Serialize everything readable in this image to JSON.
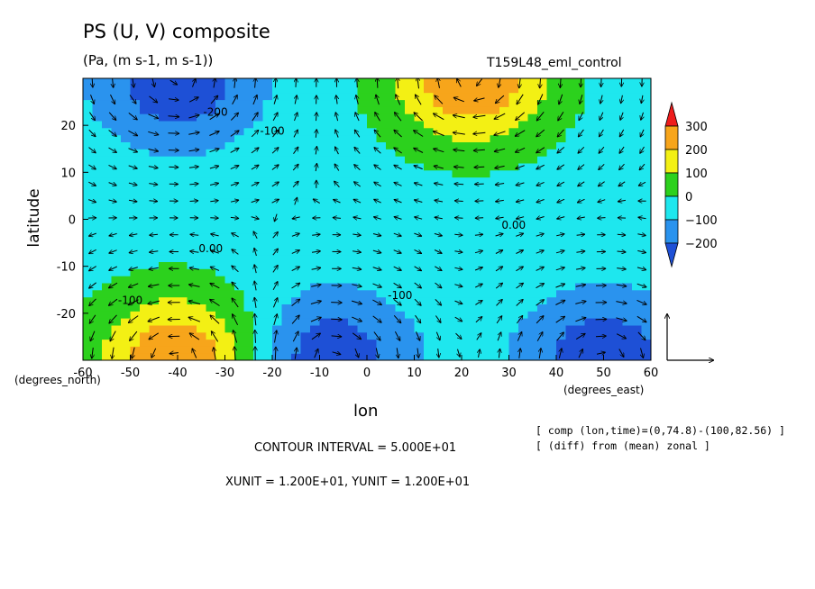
{
  "chart_data": {
    "type": "heatmap",
    "title": "PS (U, V) composite",
    "subtitle": "(Pa, (m s-1, m s-1))",
    "experiment": "T159L48_eml_control",
    "xlabel": "lon",
    "ylabel": "latitude",
    "x_unit_label": "(degrees_east)",
    "y_unit_label": "(degrees_north)",
    "xlim": [
      -60,
      60
    ],
    "ylim": [
      -30,
      30
    ],
    "x_ticks": [
      "-60",
      "-50",
      "-40",
      "-30",
      "-20",
      "-10",
      "0",
      "10",
      "20",
      "30",
      "40",
      "50",
      "60"
    ],
    "x_tick_values": [
      -60,
      -50,
      -40,
      -30,
      -20,
      -10,
      0,
      10,
      20,
      30,
      40,
      50,
      60
    ],
    "y_ticks": [
      "20",
      "10",
      "0",
      "-10",
      "-20"
    ],
    "y_tick_values": [
      20,
      10,
      0,
      -10,
      -20
    ],
    "contour_labels": [
      {
        "text": "-200",
        "lon": -32,
        "lat": 22
      },
      {
        "text": "-100",
        "lon": -20,
        "lat": 18
      },
      {
        "text": "0.00",
        "lon": -33,
        "lat": -7
      },
      {
        "text": "-100",
        "lon": -50,
        "lat": -18
      },
      {
        "text": "-100",
        "lon": 7,
        "lat": -17
      },
      {
        "text": "0.00",
        "lon": 31,
        "lat": -2
      }
    ],
    "colorbar": {
      "levels": [
        "300",
        "200",
        "100",
        "0",
        "−100",
        "−200"
      ],
      "level_values": [
        300,
        200,
        100,
        0,
        -100,
        -200
      ],
      "colors": [
        "#ee1c1c",
        "#f7a51b",
        "#f3f014",
        "#2cd11d",
        "#1ee7ee",
        "#2a93ee",
        "#1e50d6"
      ]
    },
    "anomaly_centers": [
      {
        "lon": -40,
        "lat": -30,
        "value": 340
      },
      {
        "lon": 22,
        "lat": 30,
        "value": 340
      },
      {
        "lon": -40,
        "lat": 30,
        "value": -240
      },
      {
        "lon": -8,
        "lat": -30,
        "value": -240
      },
      {
        "lon": 50,
        "lat": -30,
        "value": -240
      }
    ],
    "contour_interval": "CONTOUR INTERVAL = 5.000E+01",
    "vector_units": "XUNIT = 1.200E+01, YUNIT = 1.200E+01",
    "notes": [
      "[ comp (lon,time)=(0,74.8)-(100,82.56) ]",
      "[ (diff) from (mean) zonal ]"
    ]
  }
}
